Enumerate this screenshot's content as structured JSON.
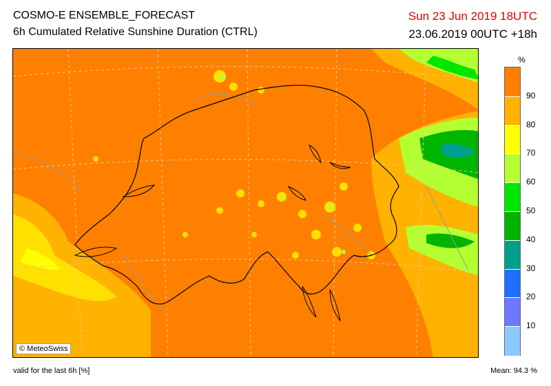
{
  "header": {
    "title": "COSMO-E ENSEMBLE_FORECAST",
    "subtitle": "6h Cumulated Relative Sunshine Duration (CTRL)",
    "valid_time": "Sun 23 Jun 2019 18UTC",
    "run_time": "23.06.2019 00UTC +18h"
  },
  "map": {
    "copyright": "© MeteoSwiss",
    "base_color": "#ff8000"
  },
  "legend": {
    "unit": "%",
    "ticks": [
      "90",
      "80",
      "70",
      "60",
      "50",
      "40",
      "30",
      "20",
      "10"
    ],
    "colors": [
      "#ff8000",
      "#ffb300",
      "#ffe000",
      "#ffff00",
      "#b4ff32",
      "#00e600",
      "#00b400",
      "#00a08c",
      "#0096d2",
      "#1e6eff",
      "#6e78ff",
      "#8cc8ff"
    ]
  },
  "footer": {
    "validity": "valid for the last 6h [%]",
    "mean": "Mean:  94.3 %"
  }
}
